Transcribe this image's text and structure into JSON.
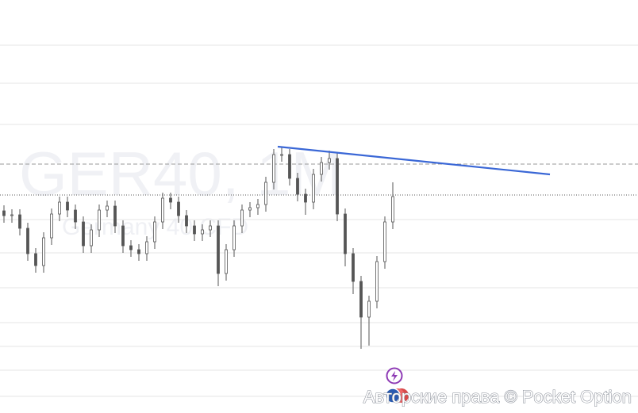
{
  "chart_data": {
    "type": "candlestick",
    "title": "GER40, 1M",
    "subtitle": "Germany 40 CFD",
    "copyright": "Авторские права © Pocket Option",
    "xlim": [
      -0.5,
      79.9
    ],
    "ylim": [
      0,
      521
    ],
    "open": [
      255,
      249,
      250,
      233,
      201,
      186,
      221,
      251,
      266,
      256,
      241,
      211,
      231,
      256,
      261,
      236,
      211,
      206,
      201,
      216,
      241,
      271,
      266,
      249,
      236,
      226,
      231,
      236,
      176,
      206,
      236,
      256,
      259,
      263,
      291,
      326,
      326,
      296,
      276,
      266,
      301,
      316,
      321,
      251,
      201,
      166,
      121,
      141,
      191,
      241
    ],
    "high": [
      262,
      257,
      257,
      240,
      208,
      228,
      258,
      273,
      273,
      263,
      248,
      238,
      263,
      268,
      268,
      243,
      218,
      213,
      223,
      248,
      278,
      278,
      273,
      256,
      243,
      238,
      243,
      243,
      213,
      243,
      263,
      266,
      270,
      298,
      333,
      336,
      333,
      303,
      283,
      308,
      323,
      331,
      328,
      258,
      208,
      173,
      148,
      198,
      248,
      291
    ],
    "low": [
      240,
      240,
      224,
      192,
      177,
      177,
      212,
      242,
      247,
      232,
      202,
      202,
      222,
      247,
      227,
      202,
      197,
      192,
      192,
      207,
      232,
      257,
      240,
      227,
      217,
      217,
      222,
      160,
      167,
      197,
      227,
      247,
      250,
      254,
      282,
      317,
      287,
      267,
      250,
      257,
      292,
      307,
      242,
      185,
      150,
      81,
      85,
      132,
      182,
      232
    ],
    "close": [
      249,
      250,
      233,
      201,
      186,
      221,
      251,
      266,
      256,
      241,
      211,
      231,
      256,
      261,
      236,
      211,
      206,
      201,
      216,
      241,
      271,
      266,
      249,
      236,
      226,
      231,
      236,
      176,
      206,
      236,
      256,
      259,
      263,
      291,
      326,
      326,
      296,
      276,
      266,
      301,
      316,
      321,
      251,
      201,
      166,
      121,
      141,
      191,
      241,
      273
    ],
    "color": "#555555",
    "levels": [
      464,
      416,
      364,
      244,
      202,
      158,
      114,
      84,
      54,
      21
    ],
    "dashed_level": 314,
    "price_level": 275,
    "trendline": {
      "x": [
        34.5,
        68.8
      ],
      "y": [
        336,
        301
      ],
      "color": "#3a67d6"
    }
  }
}
